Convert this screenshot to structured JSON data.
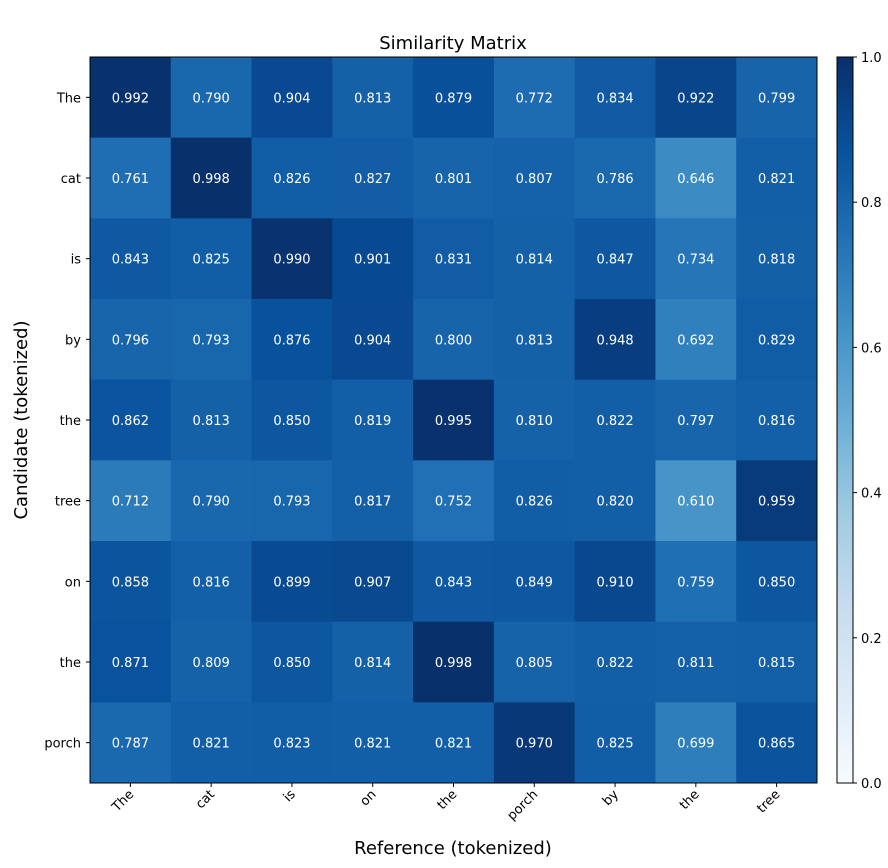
{
  "chart_data": {
    "type": "heatmap",
    "title": "Similarity Matrix",
    "xlabel": "Reference (tokenized)",
    "ylabel": "Candidate (tokenized)",
    "x_categories": [
      "The",
      "cat",
      "is",
      "on",
      "the",
      "porch",
      "by",
      "the",
      "tree"
    ],
    "y_categories": [
      "The",
      "cat",
      "is",
      "by",
      "the",
      "tree",
      "on",
      "the",
      "porch"
    ],
    "values": [
      [
        0.992,
        0.79,
        0.904,
        0.813,
        0.879,
        0.772,
        0.834,
        0.922,
        0.799
      ],
      [
        0.761,
        0.998,
        0.826,
        0.827,
        0.801,
        0.807,
        0.786,
        0.646,
        0.821
      ],
      [
        0.843,
        0.825,
        0.99,
        0.901,
        0.831,
        0.814,
        0.847,
        0.734,
        0.818
      ],
      [
        0.796,
        0.793,
        0.876,
        0.904,
        0.8,
        0.813,
        0.948,
        0.692,
        0.829
      ],
      [
        0.862,
        0.813,
        0.85,
        0.819,
        0.995,
        0.81,
        0.822,
        0.797,
        0.816
      ],
      [
        0.712,
        0.79,
        0.793,
        0.817,
        0.752,
        0.826,
        0.82,
        0.61,
        0.959
      ],
      [
        0.858,
        0.816,
        0.899,
        0.907,
        0.843,
        0.849,
        0.91,
        0.759,
        0.85
      ],
      [
        0.871,
        0.809,
        0.85,
        0.814,
        0.998,
        0.805,
        0.822,
        0.811,
        0.815
      ],
      [
        0.787,
        0.821,
        0.823,
        0.821,
        0.821,
        0.97,
        0.825,
        0.699,
        0.865
      ]
    ],
    "colormap": "Blues",
    "colormap_stops": [
      "#f7fbff",
      "#deebf7",
      "#c6dbef",
      "#9ecae1",
      "#6baed6",
      "#4292c6",
      "#2171b5",
      "#08519c",
      "#08306b"
    ],
    "color_range": [
      0,
      1
    ],
    "colorbar_ticks": [
      "0.0",
      "0.2",
      "0.4",
      "0.6",
      "0.8",
      "1.0"
    ],
    "annotation_color": "#ffffff",
    "grid": false
  }
}
